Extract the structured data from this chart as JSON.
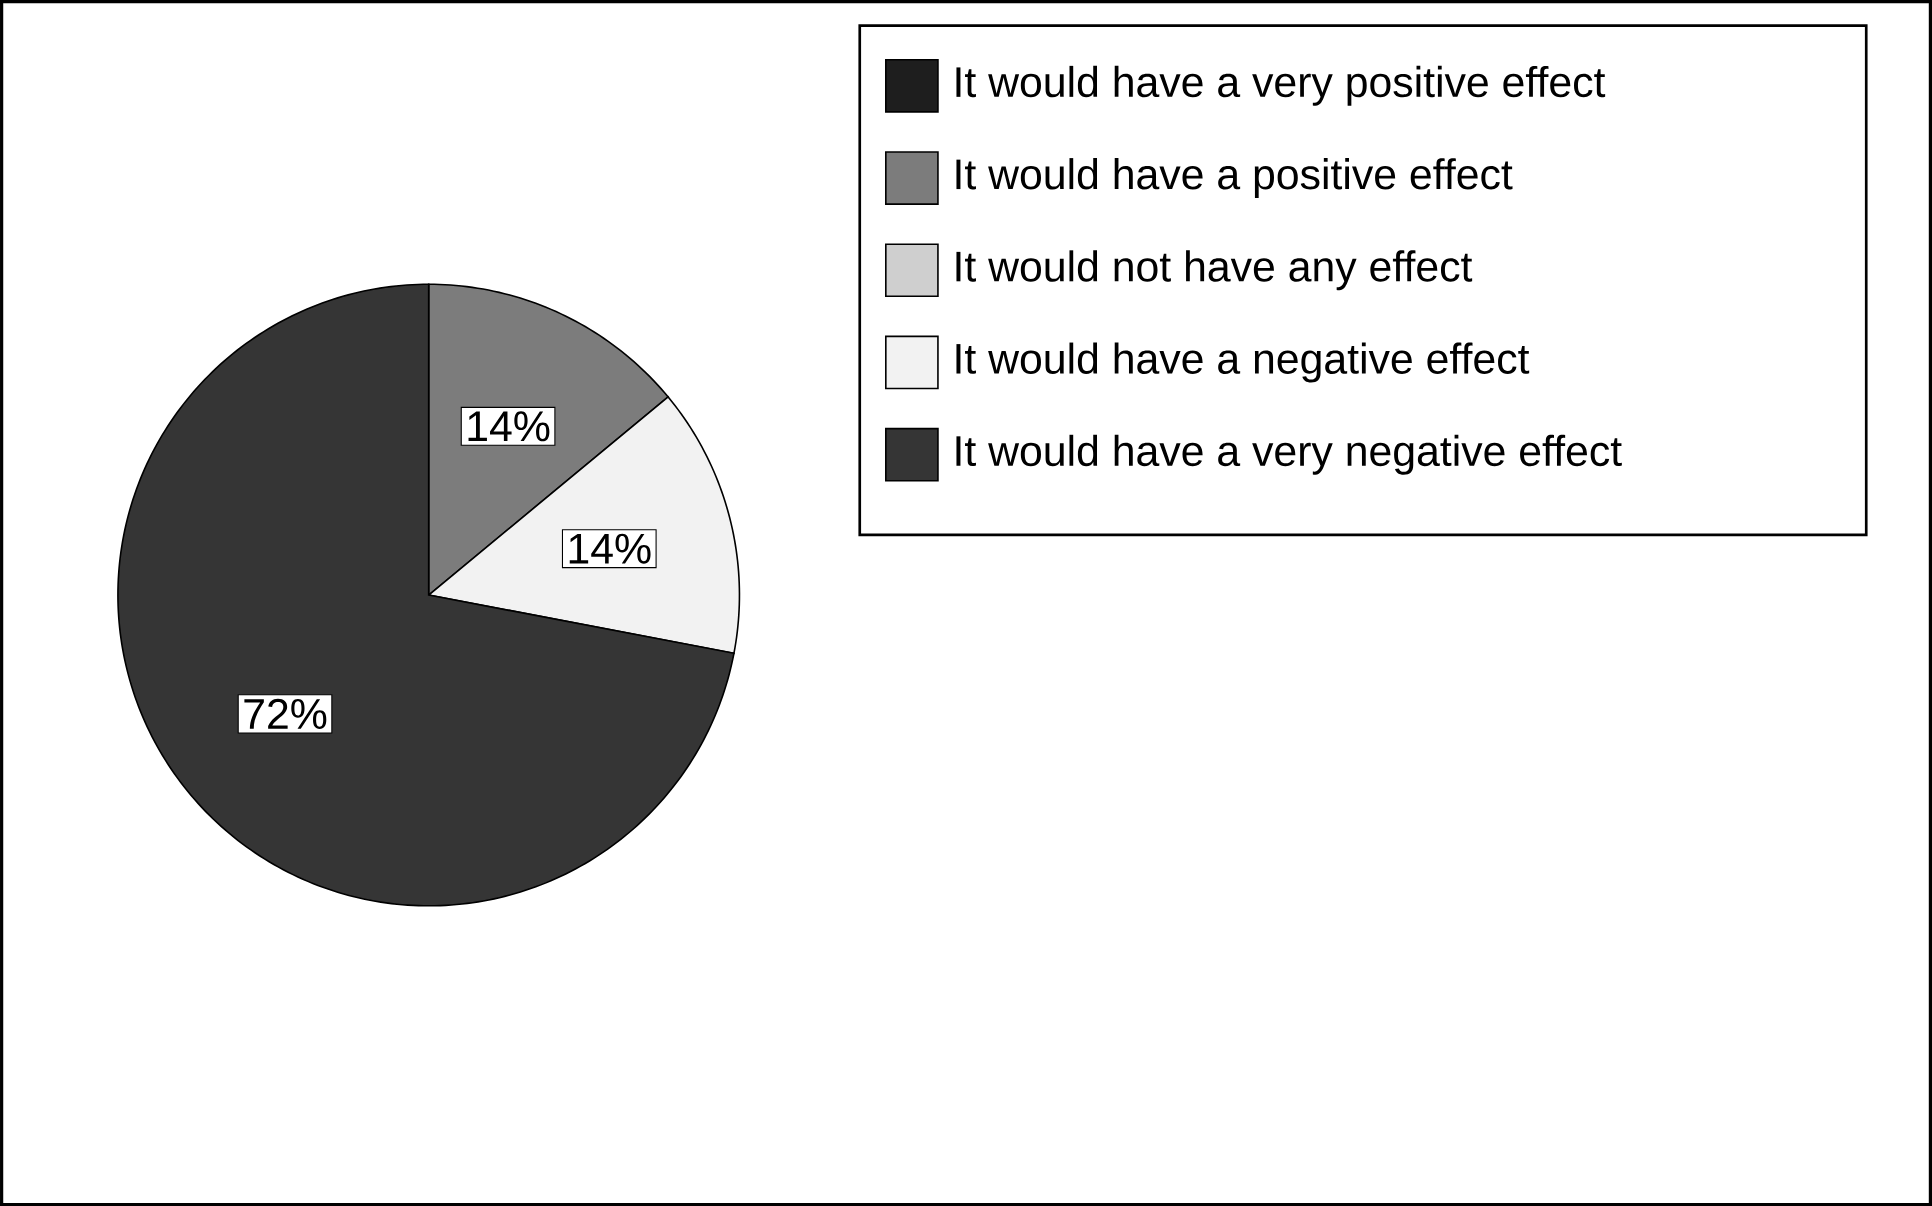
{
  "chart_data": {
    "type": "pie",
    "categories": [
      "It would have a very positive effect",
      "It would have a positive effect",
      "It would not have any effect",
      "It would have a negative effect",
      "It would have a very negative effect"
    ],
    "values": [
      0,
      14,
      0,
      14,
      72
    ],
    "value_labels": [
      null,
      "14%",
      null,
      "14%",
      "72%"
    ],
    "colors": [
      "#1e1e1e",
      "#7c7c7c",
      "#cfcfcf",
      "#f2f2f2",
      "#353535"
    ],
    "legend": "top right"
  }
}
